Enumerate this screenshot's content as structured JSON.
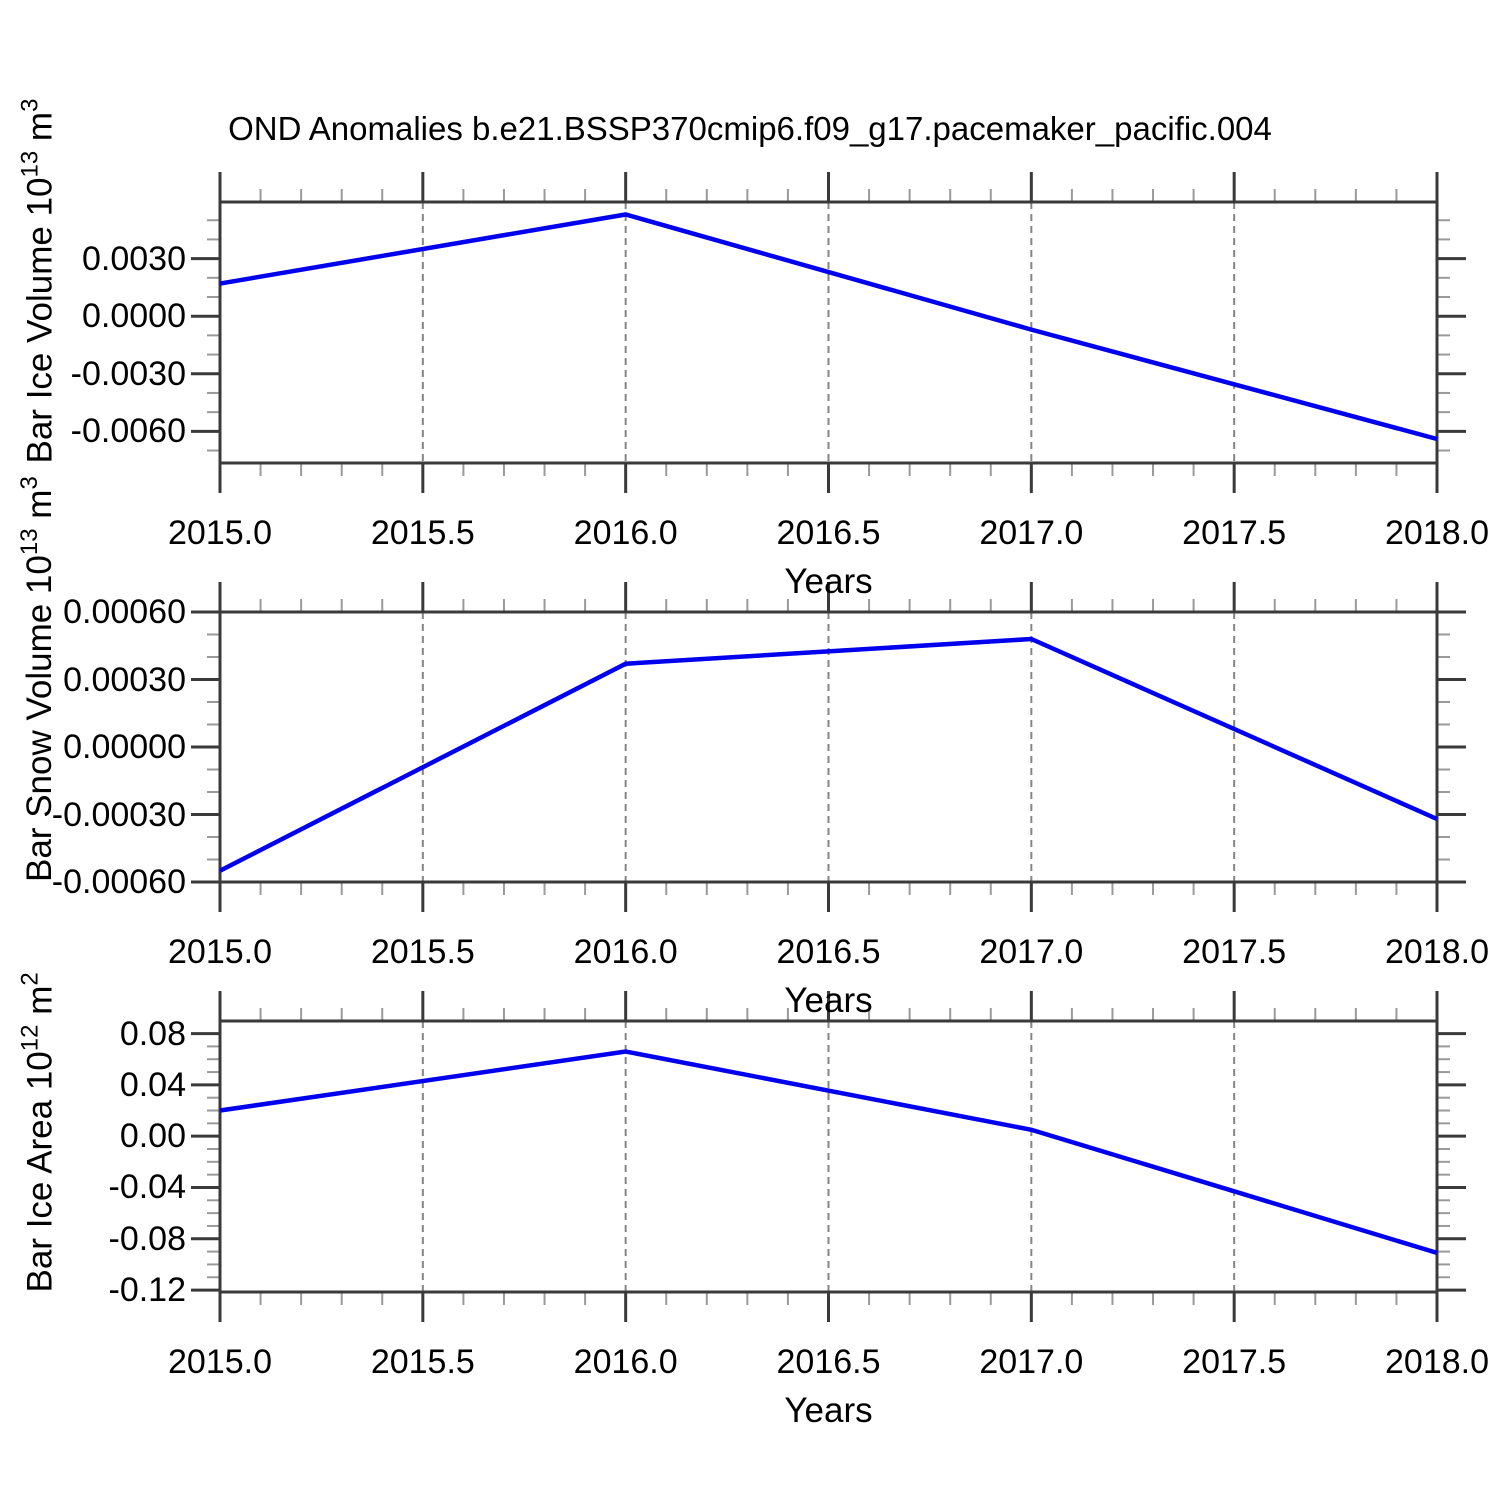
{
  "title": "OND Anomalies b.e21.BSSP370cmip6.f09_g17.pacemaker_pacific.004",
  "colors": {
    "line": "#0000EE",
    "frame": "#3A3A3A",
    "minor_tick": "#9A9A9A",
    "gridline": "#858585",
    "text": "#000000",
    "background": "#FFFFFF"
  },
  "chart_data": [
    {
      "type": "line",
      "panel": "ice-volume",
      "xlabel": "Years",
      "ylabel": "Bar Ice Volume 10^13 m^3",
      "ylabel_segments": [
        {
          "text": "Bar Ice Volume 10",
          "sup": false
        },
        {
          "text": "13",
          "sup": true
        },
        {
          "text": " m",
          "sup": false
        },
        {
          "text": "3",
          "sup": true
        }
      ],
      "x": [
        2015,
        2016,
        2017,
        2018
      ],
      "values": [
        0.0017,
        0.0053,
        -0.0007,
        -0.0064
      ],
      "xlim": [
        2015.0,
        2018.0
      ],
      "ylim": [
        -0.00765,
        0.00595
      ],
      "x_ticks": [
        2015.0,
        2015.5,
        2016.0,
        2016.5,
        2017.0,
        2017.5,
        2018.0
      ],
      "x_tick_labels": [
        "2015.0",
        "2015.5",
        "2016.0",
        "2016.5",
        "2017.0",
        "2017.5",
        "2018.0"
      ],
      "x_minor_step": 0.1,
      "y_ticks": [
        0.003,
        0.0,
        -0.003,
        -0.006
      ],
      "y_tick_labels": [
        "0.0030",
        "0.0000",
        "-0.0030",
        "-0.0060"
      ],
      "y_minor_step": 0.001,
      "gridline_x": [
        2015.5,
        2016.0,
        2016.5,
        2017.0,
        2017.5
      ],
      "grid": "vertical-dashed",
      "legend": "none"
    },
    {
      "type": "line",
      "panel": "snow-volume",
      "xlabel": "Years",
      "ylabel": "Bar Snow Volume 10^13 m^3",
      "ylabel_segments": [
        {
          "text": "Bar Snow Volume 10",
          "sup": false
        },
        {
          "text": "13",
          "sup": true
        },
        {
          "text": " m",
          "sup": false
        },
        {
          "text": "3",
          "sup": true
        }
      ],
      "x": [
        2015,
        2016,
        2017,
        2018
      ],
      "values": [
        -0.00055,
        0.00037,
        0.00048,
        -0.00032
      ],
      "xlim": [
        2015.0,
        2018.0
      ],
      "ylim": [
        -0.0006,
        0.0006
      ],
      "x_ticks": [
        2015.0,
        2015.5,
        2016.0,
        2016.5,
        2017.0,
        2017.5,
        2018.0
      ],
      "x_tick_labels": [
        "2015.0",
        "2015.5",
        "2016.0",
        "2016.5",
        "2017.0",
        "2017.5",
        "2018.0"
      ],
      "x_minor_step": 0.1,
      "y_ticks": [
        0.0006,
        0.0003,
        0.0,
        -0.0003,
        -0.0006
      ],
      "y_tick_labels": [
        "0.00060",
        "0.00030",
        "0.00000",
        "-0.00030",
        "-0.00060"
      ],
      "y_minor_step": 0.0001,
      "gridline_x": [
        2015.5,
        2016.0,
        2016.5,
        2017.0,
        2017.5
      ],
      "grid": "vertical-dashed",
      "legend": "none"
    },
    {
      "type": "line",
      "panel": "ice-area",
      "xlabel": "Years",
      "ylabel": "Bar Ice Area 10^12 m^2",
      "ylabel_segments": [
        {
          "text": "Bar Ice Area 10",
          "sup": false
        },
        {
          "text": "12",
          "sup": true
        },
        {
          "text": " m",
          "sup": false
        },
        {
          "text": "2",
          "sup": true
        }
      ],
      "x": [
        2015,
        2016,
        2017,
        2018
      ],
      "values": [
        0.02,
        0.066,
        0.005,
        -0.091
      ],
      "xlim": [
        2015.0,
        2018.0
      ],
      "ylim": [
        -0.1215,
        0.0898
      ],
      "x_ticks": [
        2015.0,
        2015.5,
        2016.0,
        2016.5,
        2017.0,
        2017.5,
        2018.0
      ],
      "x_tick_labels": [
        "2015.0",
        "2015.5",
        "2016.0",
        "2016.5",
        "2017.0",
        "2017.5",
        "2018.0"
      ],
      "x_minor_step": 0.1,
      "y_ticks": [
        0.08,
        0.04,
        0.0,
        -0.04,
        -0.08,
        -0.12
      ],
      "y_tick_labels": [
        "0.08",
        "0.04",
        "0.00",
        "-0.04",
        "-0.08",
        "-0.12"
      ],
      "y_minor_step": 0.01,
      "gridline_x": [
        2015.5,
        2016.0,
        2016.5,
        2017.0,
        2017.5
      ],
      "grid": "vertical-dashed",
      "legend": "none"
    }
  ]
}
